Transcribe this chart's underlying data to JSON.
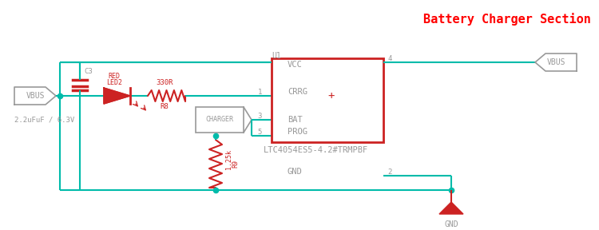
{
  "title": "Battery Charger Section",
  "title_color": "#FF0000",
  "title_fontsize": 11,
  "bg_color": "#FFFFFF",
  "wire_color": "#00BBAA",
  "component_color": "#CC2222",
  "label_color": "#999999",
  "ic_border_color": "#CC2222",
  "figsize": [
    7.5,
    2.88
  ],
  "dpi": 100,
  "cap_label": "C3",
  "cap_value": "2.2uFuF / 6.3V",
  "led_label_top": "RED",
  "led_label_bot": "LED2",
  "res330_label": "330R",
  "res330_ref": "R8",
  "charger_label": "CHARGER",
  "res125_label": "1.25k",
  "res125_ref": "R9",
  "ic_name": "U1",
  "ic_part": "LTC4054ES5-4.2#TRMPBF",
  "ic_vcc": "VCC",
  "ic_gnd": "GND",
  "ic_crrg": "CRRG",
  "ic_bat": "BAT",
  "ic_prog": "PROG",
  "ic_plus": "+",
  "vbus_label": "VBUS",
  "gnd_label": "GND"
}
